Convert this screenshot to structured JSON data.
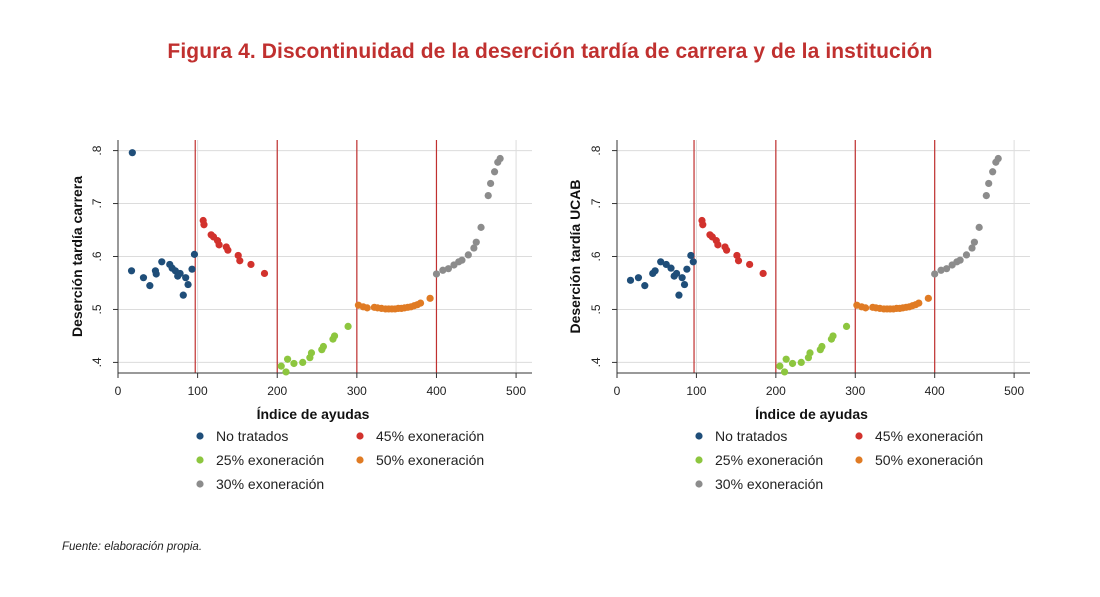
{
  "title": "Figura 4. Discontinuidad de la deserción tardía de carrera y de la institución",
  "source": "Fuente: elaboración propia.",
  "colors": {
    "no_tratados": "#1f4e79",
    "exo45": "#d2322d",
    "exo25": "#8dc63f",
    "exo50": "#e07b24",
    "exo30": "#8c8c8c",
    "cutoff_line": "#c0302f",
    "grid": "#dcdcdc"
  },
  "chart_data": [
    {
      "type": "scatter",
      "title": "",
      "xlabel": "Índice de ayudas",
      "ylabel": "Deserción tardía carrera",
      "xlim": [
        0,
        520
      ],
      "ylim": [
        0.38,
        0.82
      ],
      "xticks": [
        0,
        100,
        200,
        300,
        400,
        500
      ],
      "xtick_labels": [
        "0",
        "100",
        "200",
        "300",
        "400",
        "500"
      ],
      "yticks": [
        0.4,
        0.5,
        0.6,
        0.7,
        0.8
      ],
      "ytick_labels": [
        ".4",
        ".5",
        ".6",
        ".7",
        ".8"
      ],
      "cutoffs": [
        97,
        200,
        300,
        400
      ],
      "grid": true,
      "legend_placement": "bottom",
      "series": [
        {
          "name": "No tratados",
          "color_key": "no_tratados",
          "x": [
            18,
            17,
            32,
            40,
            47,
            48,
            55,
            65,
            68,
            72,
            75,
            78,
            82,
            85,
            88,
            93,
            96
          ],
          "y": [
            0.796,
            0.573,
            0.56,
            0.545,
            0.573,
            0.567,
            0.59,
            0.585,
            0.578,
            0.573,
            0.563,
            0.568,
            0.527,
            0.56,
            0.547,
            0.576,
            0.604
          ]
        },
        {
          "name": "45% exoneración",
          "color_key": "exo45",
          "x": [
            107,
            108,
            117,
            120,
            125,
            127,
            136,
            138,
            151,
            153,
            167,
            184
          ],
          "y": [
            0.668,
            0.66,
            0.641,
            0.637,
            0.63,
            0.622,
            0.618,
            0.612,
            0.602,
            0.592,
            0.585,
            0.568
          ]
        },
        {
          "name": "25% exoneración",
          "color_key": "exo25",
          "x": [
            205,
            211,
            213,
            221,
            232,
            241,
            243,
            256,
            258,
            270,
            272,
            289
          ],
          "y": [
            0.393,
            0.382,
            0.406,
            0.398,
            0.4,
            0.409,
            0.418,
            0.424,
            0.43,
            0.444,
            0.45,
            0.468
          ]
        },
        {
          "name": "50% exoneración",
          "color_key": "exo50",
          "x": [
            302,
            308,
            313,
            322,
            326,
            331,
            336,
            340,
            344,
            348,
            352,
            356,
            360,
            364,
            368,
            372,
            376,
            380,
            392
          ],
          "y": [
            0.508,
            0.505,
            0.503,
            0.504,
            0.503,
            0.502,
            0.501,
            0.501,
            0.501,
            0.501,
            0.502,
            0.502,
            0.503,
            0.504,
            0.505,
            0.507,
            0.509,
            0.512,
            0.521
          ]
        },
        {
          "name": "30% exoneración",
          "color_key": "exo30",
          "x": [
            400,
            408,
            415,
            422,
            428,
            432,
            440,
            447,
            450,
            456,
            465,
            468,
            473,
            477,
            480
          ],
          "y": [
            0.567,
            0.574,
            0.577,
            0.584,
            0.59,
            0.593,
            0.603,
            0.616,
            0.627,
            0.655,
            0.715,
            0.738,
            0.76,
            0.778,
            0.785
          ]
        }
      ]
    },
    {
      "type": "scatter",
      "title": "",
      "xlabel": "Índice de ayudas",
      "ylabel": "Deserción tardía UCAB",
      "xlim": [
        0,
        520
      ],
      "ylim": [
        0.38,
        0.82
      ],
      "xticks": [
        0,
        100,
        200,
        300,
        400,
        500
      ],
      "xtick_labels": [
        "0",
        "100",
        "200",
        "300",
        "400",
        "500"
      ],
      "yticks": [
        0.4,
        0.5,
        0.6,
        0.7,
        0.8
      ],
      "ytick_labels": [
        ".4",
        ".5",
        ".6",
        ".7",
        ".8"
      ],
      "cutoffs": [
        97,
        200,
        300,
        400
      ],
      "grid": true,
      "legend_placement": "bottom",
      "series": [
        {
          "name": "No tratados",
          "color_key": "no_tratados",
          "x": [
            17,
            27,
            35,
            45,
            48,
            55,
            62,
            68,
            72,
            75,
            78,
            82,
            85,
            88,
            93,
            96
          ],
          "y": [
            0.555,
            0.56,
            0.545,
            0.568,
            0.573,
            0.59,
            0.585,
            0.578,
            0.563,
            0.568,
            0.527,
            0.56,
            0.547,
            0.576,
            0.602,
            0.59
          ]
        },
        {
          "name": "45% exoneración",
          "color_key": "exo45",
          "x": [
            107,
            108,
            117,
            120,
            125,
            127,
            136,
            138,
            151,
            153,
            167,
            184
          ],
          "y": [
            0.668,
            0.66,
            0.641,
            0.637,
            0.63,
            0.622,
            0.618,
            0.612,
            0.602,
            0.592,
            0.585,
            0.568
          ]
        },
        {
          "name": "25% exoneración",
          "color_key": "exo25",
          "x": [
            205,
            211,
            213,
            221,
            232,
            241,
            243,
            256,
            258,
            270,
            272,
            289
          ],
          "y": [
            0.393,
            0.382,
            0.406,
            0.398,
            0.4,
            0.409,
            0.418,
            0.424,
            0.43,
            0.444,
            0.45,
            0.468
          ]
        },
        {
          "name": "50% exoneración",
          "color_key": "exo50",
          "x": [
            302,
            308,
            313,
            322,
            326,
            331,
            336,
            340,
            344,
            348,
            352,
            356,
            360,
            364,
            368,
            372,
            376,
            380,
            392
          ],
          "y": [
            0.508,
            0.505,
            0.503,
            0.504,
            0.503,
            0.502,
            0.501,
            0.501,
            0.501,
            0.501,
            0.502,
            0.502,
            0.503,
            0.504,
            0.505,
            0.507,
            0.509,
            0.512,
            0.521
          ]
        },
        {
          "name": "30% exoneración",
          "color_key": "exo30",
          "x": [
            400,
            408,
            415,
            422,
            428,
            432,
            440,
            447,
            450,
            456,
            465,
            468,
            473,
            477,
            480
          ],
          "y": [
            0.567,
            0.574,
            0.577,
            0.584,
            0.59,
            0.593,
            0.603,
            0.616,
            0.627,
            0.655,
            0.715,
            0.738,
            0.76,
            0.778,
            0.785
          ]
        }
      ]
    }
  ]
}
